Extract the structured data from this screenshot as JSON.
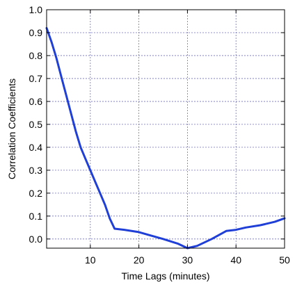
{
  "chart_data": {
    "type": "line",
    "title": "",
    "xlabel": "Time Lags (minutes)",
    "ylabel": "Correlation Coefficients",
    "xlim": [
      1,
      50
    ],
    "ylim": [
      -0.04,
      1.0
    ],
    "x_ticks": [
      10,
      20,
      30,
      40,
      50
    ],
    "x_tick_labels": [
      "10",
      "20",
      "30",
      "40",
      "50"
    ],
    "y_ticks": [
      0.0,
      0.1,
      0.2,
      0.3,
      0.4,
      0.5,
      0.6,
      0.7,
      0.8,
      0.9,
      1.0
    ],
    "y_tick_labels": [
      "0.0",
      "0.1",
      "0.2",
      "0.3",
      "0.4",
      "0.5",
      "0.6",
      "0.7",
      "0.8",
      "0.9",
      "1.0"
    ],
    "grid": true,
    "legend": "none",
    "series": [
      {
        "color": "#1f3fd6",
        "x": [
          1,
          2,
          3,
          4,
          5,
          6,
          7,
          8,
          9,
          10,
          11,
          12,
          13,
          14,
          15,
          17,
          20,
          22,
          25,
          28,
          30,
          32,
          35,
          38,
          40,
          42,
          45,
          48,
          50
        ],
        "y": [
          0.92,
          0.86,
          0.79,
          0.71,
          0.63,
          0.55,
          0.47,
          0.4,
          0.35,
          0.3,
          0.25,
          0.2,
          0.15,
          0.09,
          0.045,
          0.04,
          0.03,
          0.018,
          0.0,
          -0.02,
          -0.04,
          -0.03,
          0.0,
          0.035,
          0.04,
          0.05,
          0.06,
          0.075,
          0.09
        ]
      }
    ]
  }
}
